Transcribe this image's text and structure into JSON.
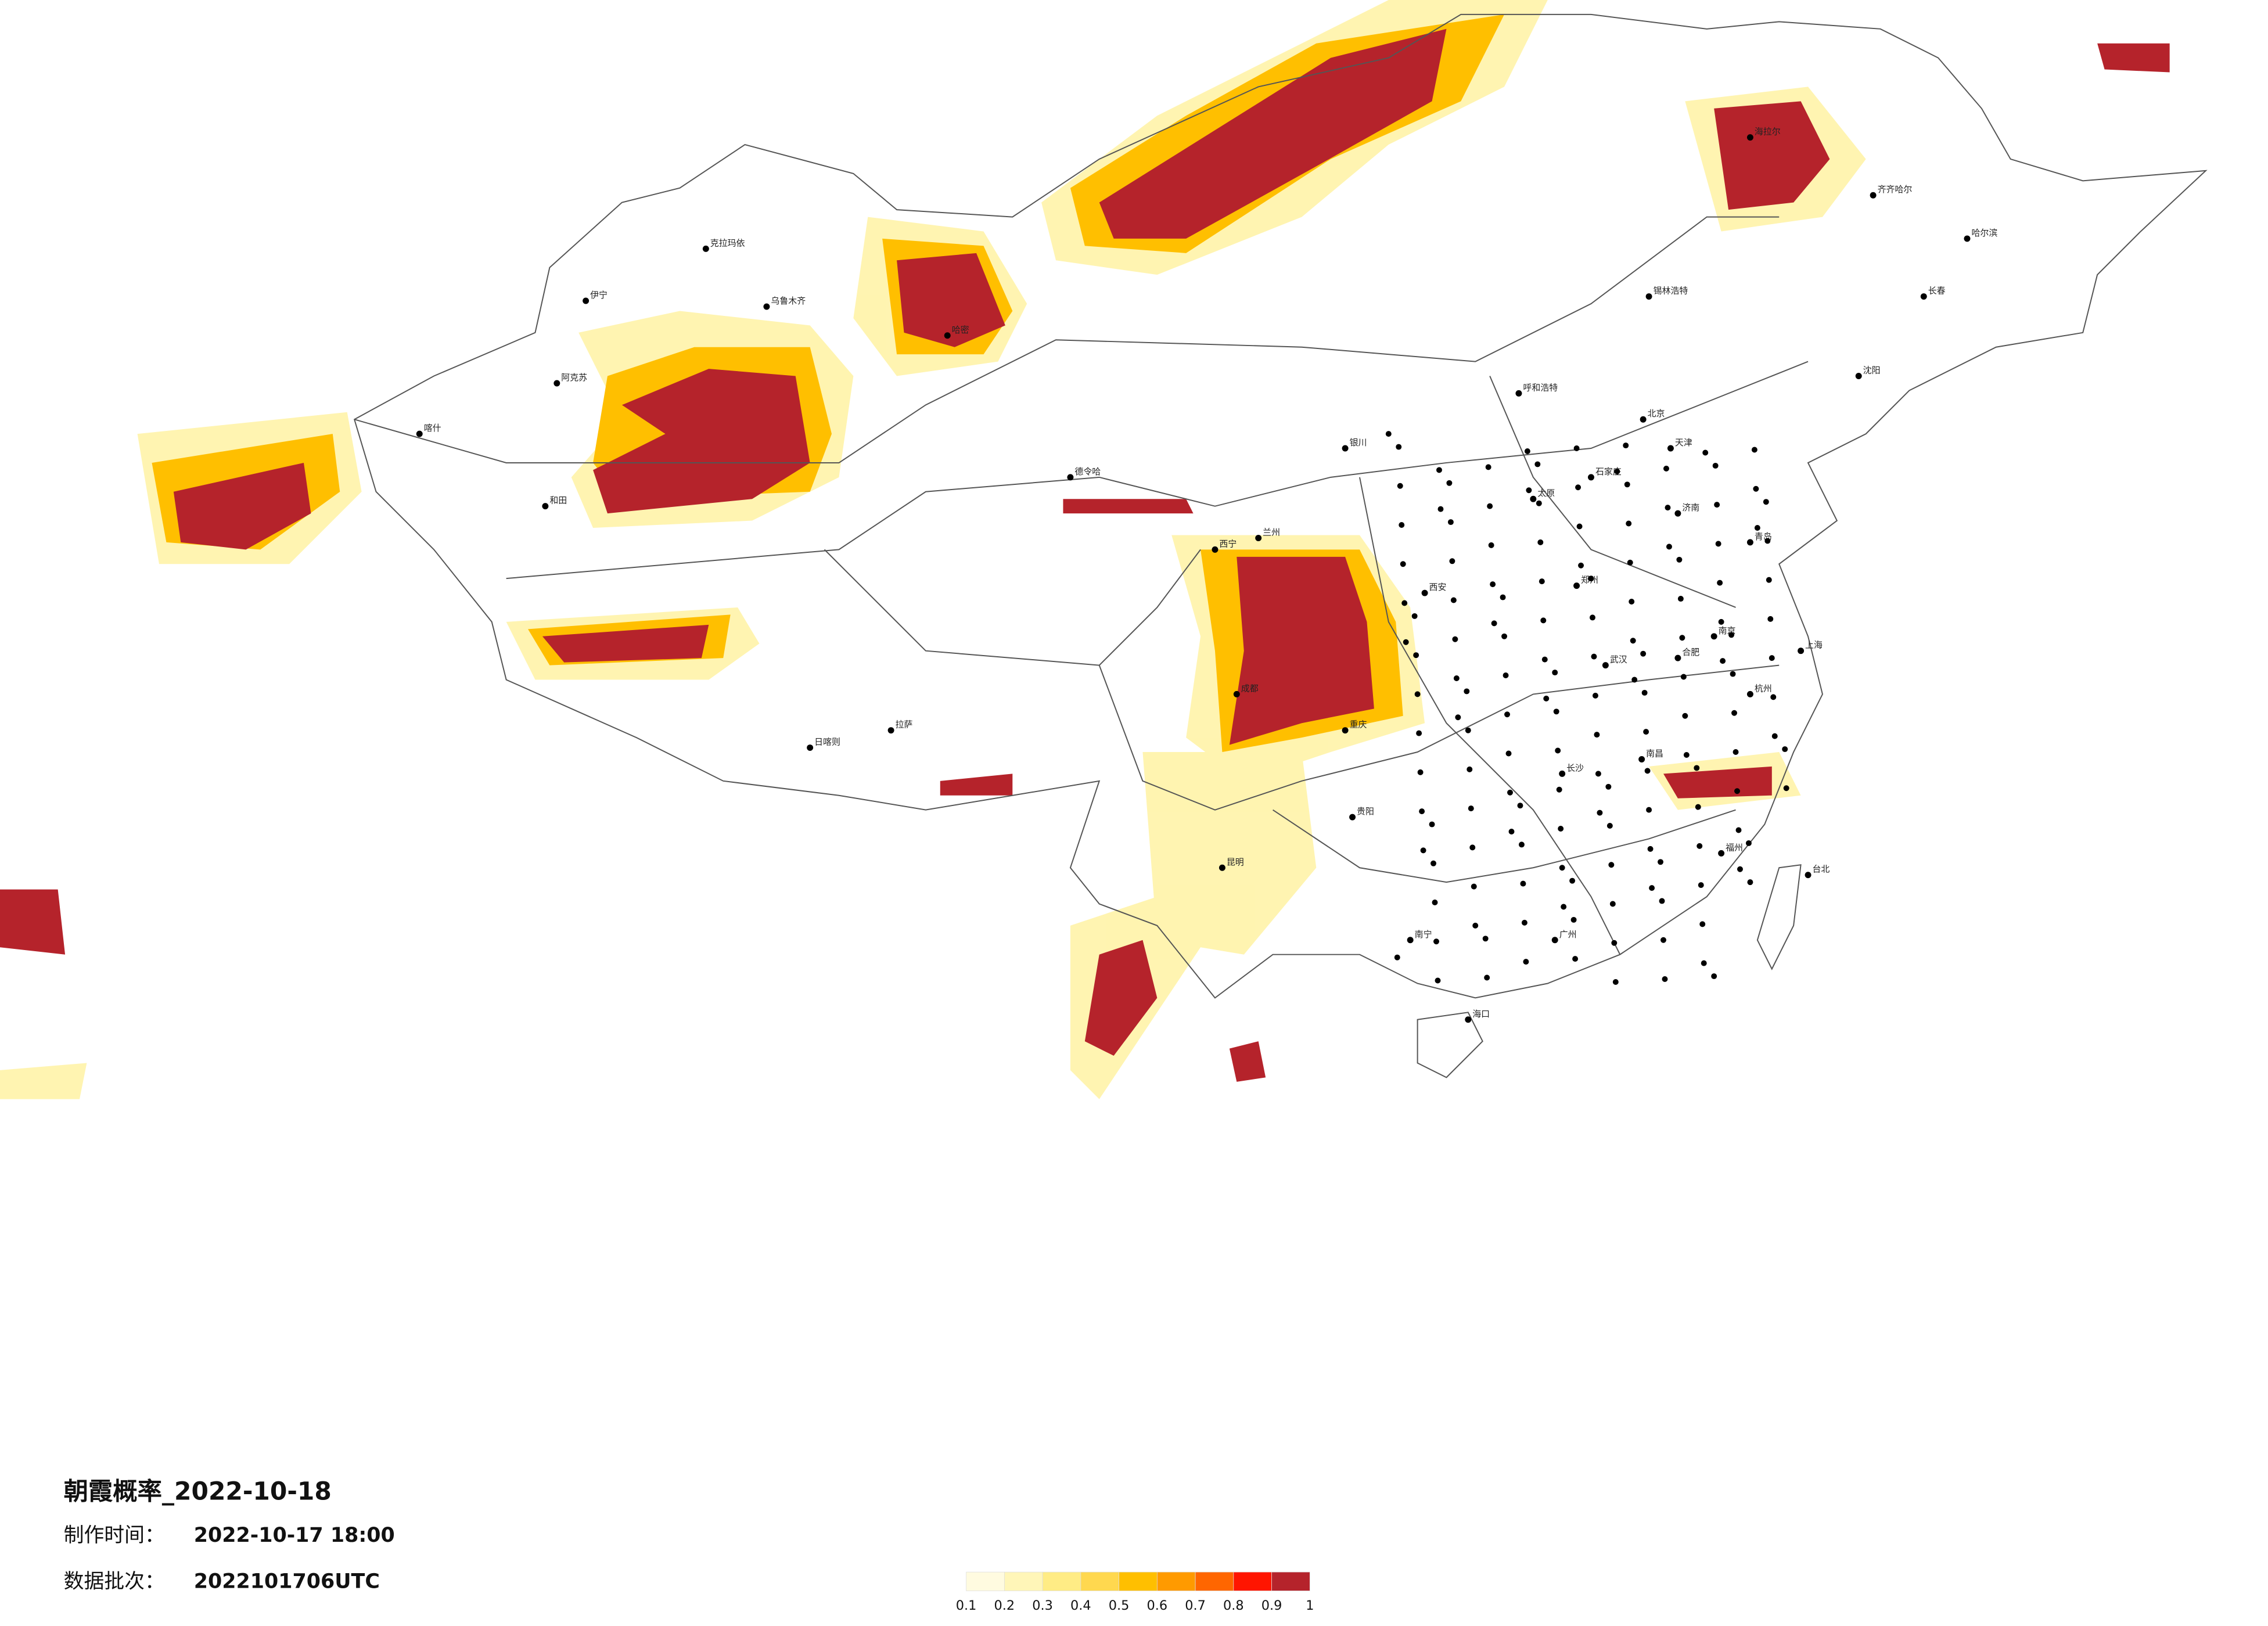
{
  "title": "朝霞概率_2022-10-18",
  "made_label": "制作时间：",
  "made_time": "2022-10-17 18:00",
  "batch_label": "数据批次：",
  "batch": "2022101706UTC",
  "legend": {
    "ticks": [
      0.1,
      0.2,
      0.3,
      0.4,
      0.5,
      0.6,
      0.7,
      0.8,
      0.9,
      1
    ],
    "colors": [
      "#fffbe0",
      "#fff6b8",
      "#ffec85",
      "#ffd84f",
      "#ffbf00",
      "#ff9a00",
      "#ff6600",
      "#ff1500",
      "#b5232b"
    ]
  },
  "cities": [
    "乌鲁木齐",
    "克拉玛依",
    "伊宁",
    "阿克苏",
    "和田",
    "喀什",
    "哈密",
    "拉萨",
    "日喀则",
    "西宁",
    "兰州",
    "银川",
    "呼和浩特",
    "北京",
    "天津",
    "石家庄",
    "太原",
    "济南",
    "郑州",
    "西安",
    "成都",
    "重庆",
    "武汉",
    "长沙",
    "南昌",
    "合肥",
    "南京",
    "上海",
    "杭州",
    "福州",
    "台北",
    "广州",
    "南宁",
    "海口",
    "贵阳",
    "昆明",
    "哈尔滨",
    "长春",
    "沈阳",
    "青岛",
    "海拉尔",
    "锡林浩特",
    "德令哈",
    "齐齐哈尔"
  ]
}
